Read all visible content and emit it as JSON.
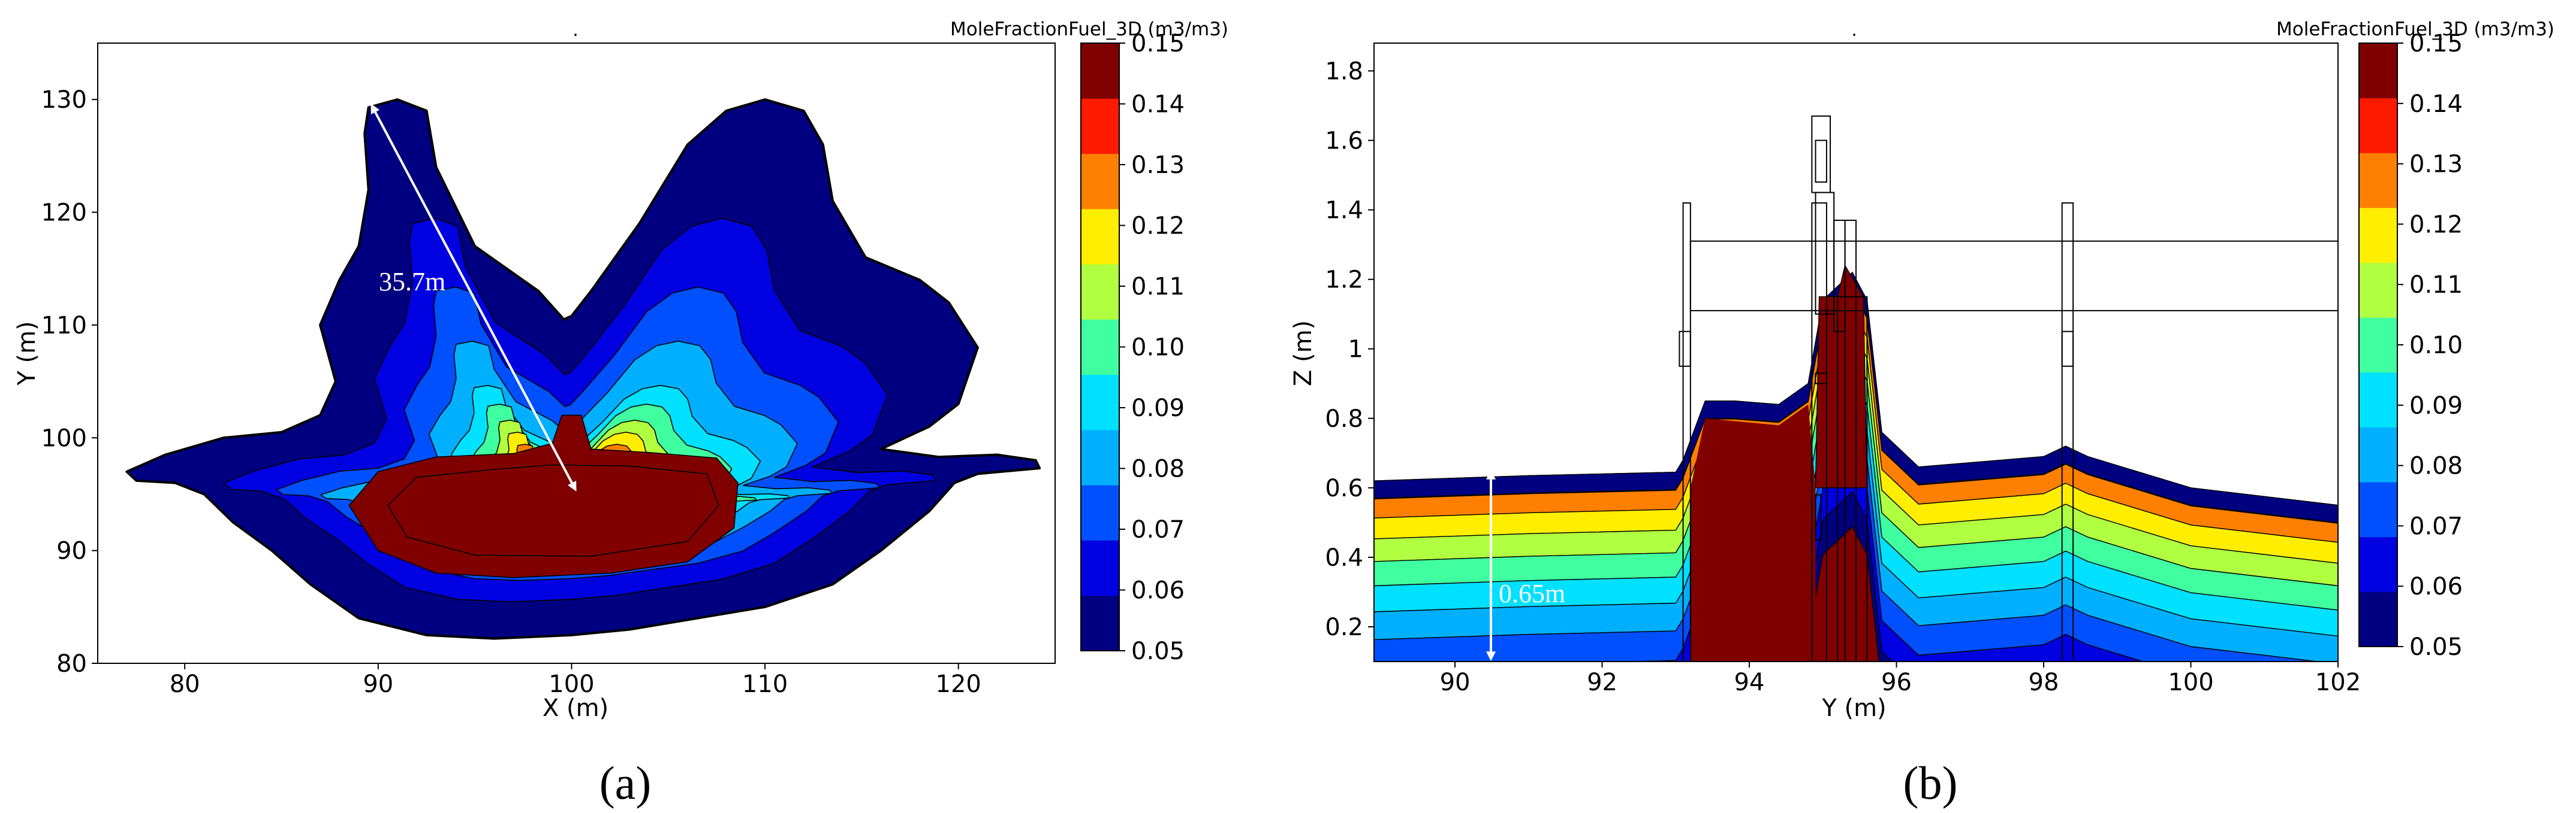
{
  "chart_data": [
    {
      "type": "contour",
      "panel_label": "(a)",
      "title": ".",
      "xlabel": "X (m)",
      "ylabel": "Y (m)",
      "xlim": [
        75.5,
        125
      ],
      "ylim": [
        80,
        135
      ],
      "xticks": [
        "80",
        "90",
        "100",
        "110",
        "120"
      ],
      "yticks": [
        "80",
        "90",
        "100",
        "110",
        "120",
        "130"
      ],
      "colorbar": {
        "title": "MoleFractionFuel_3D (m3/m3)",
        "levels": [
          "0.05",
          "0.06",
          "0.07",
          "0.08",
          "0.09",
          "0.10",
          "0.11",
          "0.12",
          "0.13",
          "0.14",
          "0.15"
        ],
        "colors": [
          "#000080",
          "#0000e0",
          "#0050ff",
          "#00b0ff",
          "#00e0ff",
          "#40ffa0",
          "#b0ff40",
          "#ffee00",
          "#ff8000",
          "#ff1a00",
          "#800000"
        ]
      },
      "annotation": {
        "text": "35.7m",
        "from": [
          89.5,
          129
        ],
        "to": [
          100,
          95.5
        ]
      }
    },
    {
      "type": "contour",
      "panel_label": "(b)",
      "title": ".",
      "xlabel": "Y (m)",
      "ylabel": "Z (m)",
      "xlim": [
        88.9,
        102
      ],
      "ylim": [
        0.1,
        1.88
      ],
      "xticks": [
        "90",
        "92",
        "94",
        "96",
        "98",
        "100",
        "102"
      ],
      "yticks": [
        "0.2",
        "0.4",
        "0.6",
        "0.8",
        "1",
        "1.2",
        "1.4",
        "1.6",
        "1.8"
      ],
      "colorbar": {
        "title": "MoleFractionFuel_3D (m3/m3)",
        "levels": [
          "0.05",
          "0.06",
          "0.07",
          "0.08",
          "0.09",
          "0.10",
          "0.11",
          "0.12",
          "0.13",
          "0.14",
          "0.15"
        ],
        "colors": [
          "#000080",
          "#0000e0",
          "#0050ff",
          "#00b0ff",
          "#00e0ff",
          "#40ffa0",
          "#b0ff40",
          "#ffee00",
          "#ff8000",
          "#ff1a00",
          "#800000"
        ]
      },
      "annotation": {
        "text": "0.65m",
        "x": 90.5,
        "from_z": 0.1,
        "to_z": 0.65
      }
    }
  ]
}
